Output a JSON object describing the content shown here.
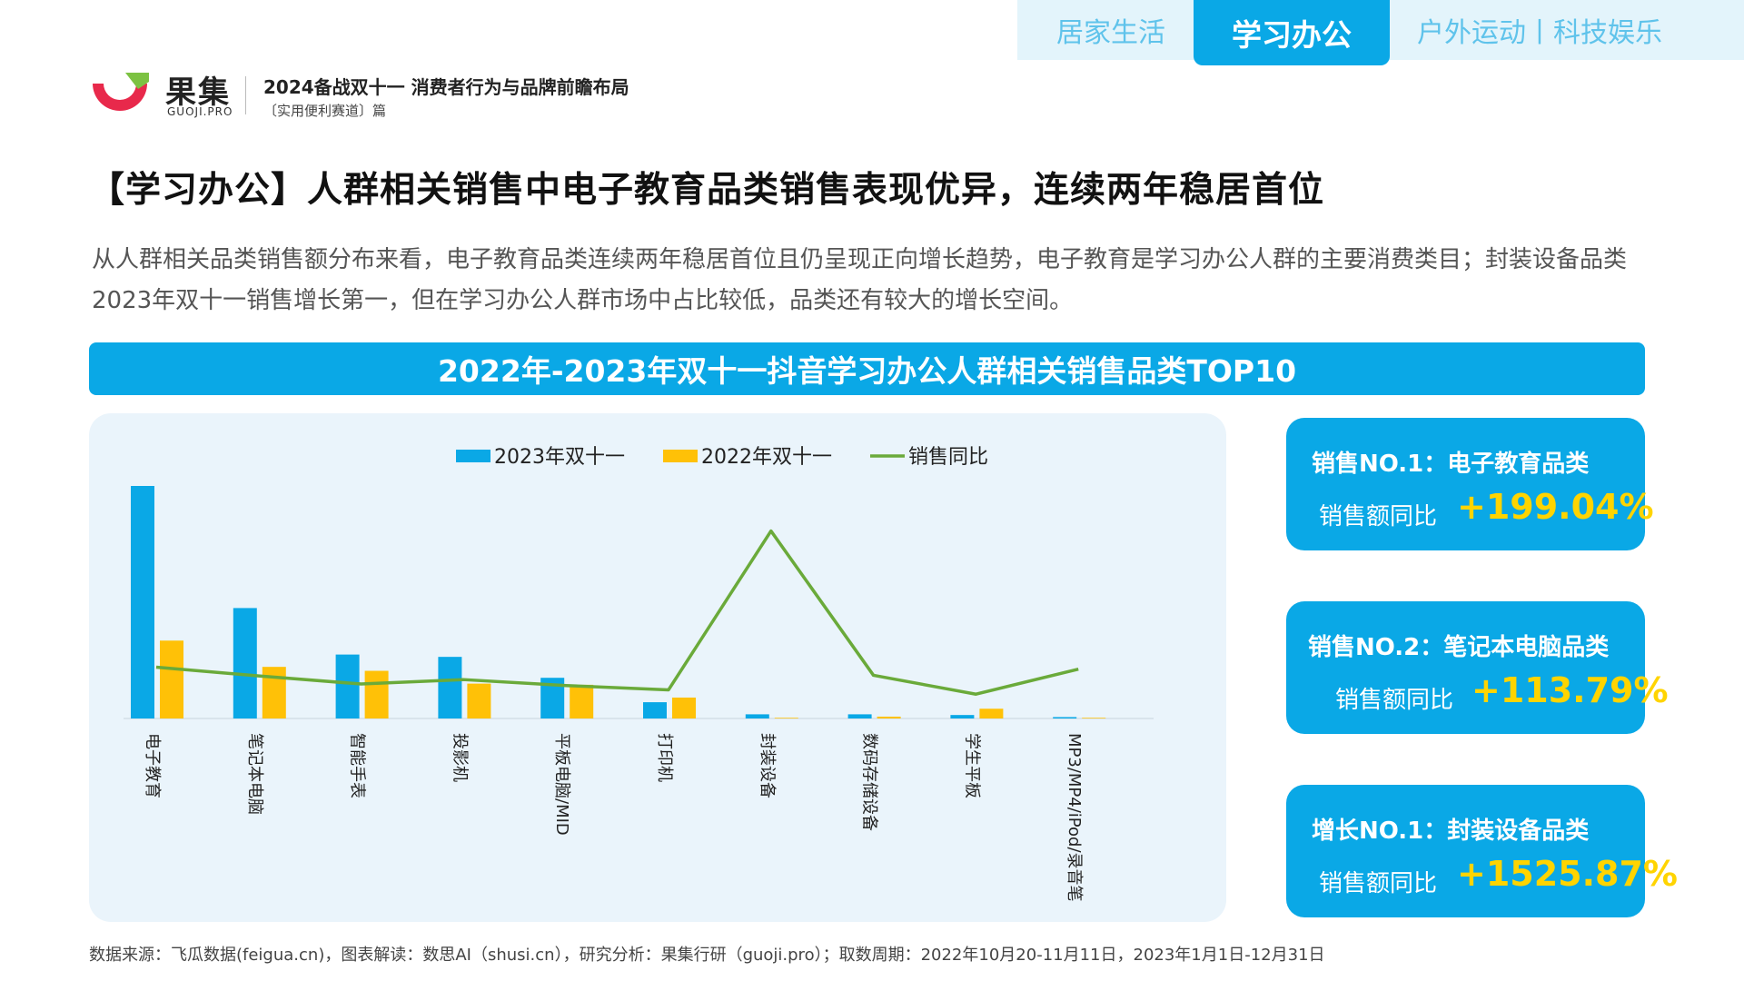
{
  "nav": {
    "tabs": [
      {
        "label": "居家生活",
        "active": false
      },
      {
        "label": "学习办公",
        "active": true
      },
      {
        "label": "户外运动丨科技娱乐",
        "active": false
      }
    ]
  },
  "brand": {
    "name_cn": "果集",
    "name_en": "GUOJI.PRO",
    "report_title": "2024备战双十一 消费者行为与品牌前瞻布局",
    "report_subtitle": "〔实用便利赛道〕篇"
  },
  "page": {
    "title": "【学习办公】人群相关销售中电子教育品类销售表现优异，连续两年稳居首位",
    "description": "从人群相关品类销售额分布来看，电子教育品类连续两年稳居首位且仍呈现正向增长趋势，电子教育是学习办公人群的主要消费类目；封装设备品类2023年双十一销售增长第一，但在学习办公人群市场中占比较低，品类还有较大的增长空间。",
    "banner": "2022年-2023年双十一抖音学习办公人群相关销售品类TOP10"
  },
  "chart_data": {
    "type": "bar",
    "title": "2022年-2023年双十一抖音学习办公人群相关销售品类TOP10",
    "categories": [
      "电子教育",
      "笔记本电脑",
      "智能手表",
      "投影机",
      "平板电脑/MID",
      "打印机",
      "封装设备",
      "数码存储设备",
      "学生平板",
      "MP3/MP4/iPod/录音笔"
    ],
    "series": [
      {
        "name": "2023年双十一",
        "kind": "bar",
        "color": "#0aa8e6",
        "values": [
          100,
          47.5,
          27.5,
          26.5,
          17.5,
          7,
          1.8,
          1.8,
          1.5,
          0.6
        ]
      },
      {
        "name": "2022年双十一",
        "kind": "bar",
        "color": "#ffc107",
        "values": [
          33.5,
          22.2,
          20.5,
          15,
          14.5,
          9,
          0.3,
          0.8,
          4.2,
          0.3
        ]
      },
      {
        "name": "销售同比",
        "kind": "line",
        "color": "#6aaa3a",
        "values": [
          199,
          114,
          35,
          78,
          20,
          -22,
          1526,
          120,
          -64,
          180
        ]
      }
    ],
    "legend": "top-center",
    "grid": false
  },
  "cards": [
    {
      "title": "销售NO.1：电子教育品类",
      "label": "销售额同比",
      "value": "+199.04%"
    },
    {
      "title": "销售NO.2：笔记本电脑品类",
      "label": "销售额同比",
      "value": "+113.79%"
    },
    {
      "title": "增长NO.1：封装设备品类",
      "label": "销售额同比",
      "value": "+1525.87%"
    }
  ],
  "footer": "数据来源：飞瓜数据(feigua.cn)，图表解读：数思AI（shusi.cn），研究分析：果集行研（guoji.pro）；取数周期：2022年10月20-11月11日，2023年1月1日-12月31日"
}
